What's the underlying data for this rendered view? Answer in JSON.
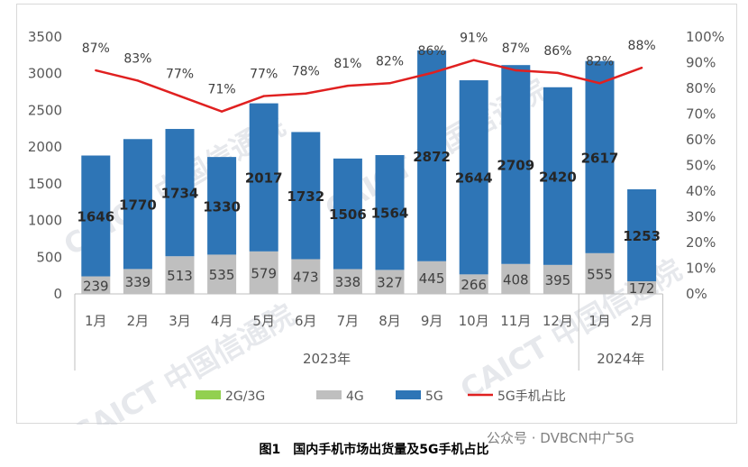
{
  "chart_data": {
    "type": "bar",
    "stacked": true,
    "categories": [
      "1月",
      "2月",
      "3月",
      "4月",
      "5月",
      "6月",
      "7月",
      "8月",
      "9月",
      "10月",
      "11月",
      "12月",
      "1月",
      "2月"
    ],
    "groups": [
      {
        "label": "2023年",
        "from": 0,
        "to": 11
      },
      {
        "label": "2024年",
        "from": 12,
        "to": 13
      }
    ],
    "series": [
      {
        "name": "2G/3G",
        "type": "bar",
        "color": "#92d050",
        "values": [
          0,
          0,
          0,
          0,
          0,
          0,
          0,
          0,
          0,
          0,
          0,
          0,
          0,
          0
        ]
      },
      {
        "name": "4G",
        "type": "bar",
        "color": "#bfbfbf",
        "values": [
          239,
          339,
          513,
          535,
          579,
          473,
          338,
          327,
          445,
          266,
          408,
          395,
          555,
          172
        ]
      },
      {
        "name": "5G",
        "type": "bar",
        "color": "#2e75b6",
        "values": [
          1646,
          1770,
          1734,
          1330,
          2017,
          1732,
          1506,
          1564,
          2872,
          2644,
          2709,
          2420,
          2617,
          1253
        ]
      },
      {
        "name": "5G手机占比",
        "type": "line",
        "color": "#e02020",
        "axis": "right",
        "values": [
          87,
          83,
          77,
          71,
          77,
          78,
          81,
          82,
          86,
          91,
          87,
          86,
          82,
          88
        ]
      }
    ],
    "y_left": {
      "min": 0,
      "max": 3500,
      "step": 500
    },
    "y_right": {
      "min": 0,
      "max": 100,
      "step": 10,
      "unit": "%"
    },
    "legend_position": "bottom",
    "grid": false
  },
  "caption": "图1　国内手机市场出货量及5G手机占比",
  "source_tag": "公众号 · DVBCN中广5G",
  "watermark": "CAICT 中国信通院"
}
